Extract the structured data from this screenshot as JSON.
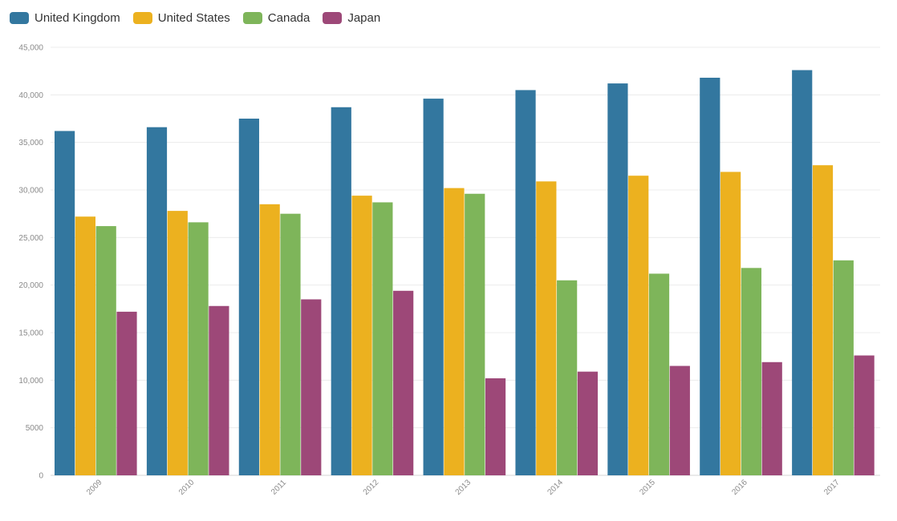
{
  "chart_data": {
    "type": "bar",
    "categories": [
      "2009",
      "2010",
      "2011",
      "2012",
      "2013",
      "2014",
      "2015",
      "2016",
      "2017"
    ],
    "series": [
      {
        "name": "United Kingdom",
        "color": "#33779f",
        "values": [
          36200,
          36600,
          37500,
          38700,
          39600,
          40500,
          41200,
          41800,
          42600
        ]
      },
      {
        "name": "United States",
        "color": "#ecb11f",
        "values": [
          27200,
          27800,
          28500,
          29400,
          30200,
          30900,
          31500,
          31900,
          32600
        ]
      },
      {
        "name": "Canada",
        "color": "#7eb55a",
        "values": [
          26200,
          26600,
          27500,
          28700,
          29600,
          20500,
          21200,
          21800,
          22600
        ]
      },
      {
        "name": "Japan",
        "color": "#9d4878",
        "values": [
          17200,
          17800,
          18500,
          19400,
          10200,
          10900,
          11500,
          11900,
          12600
        ]
      }
    ],
    "y_ticks": [
      "0",
      "5000",
      "10,000",
      "15,000",
      "20,000",
      "25,000",
      "30,000",
      "35,000",
      "40,000",
      "45,000"
    ],
    "ylim": [
      0,
      45000
    ],
    "grid": true,
    "legend_position": "top-left",
    "title": "",
    "xlabel": "",
    "ylabel": ""
  }
}
